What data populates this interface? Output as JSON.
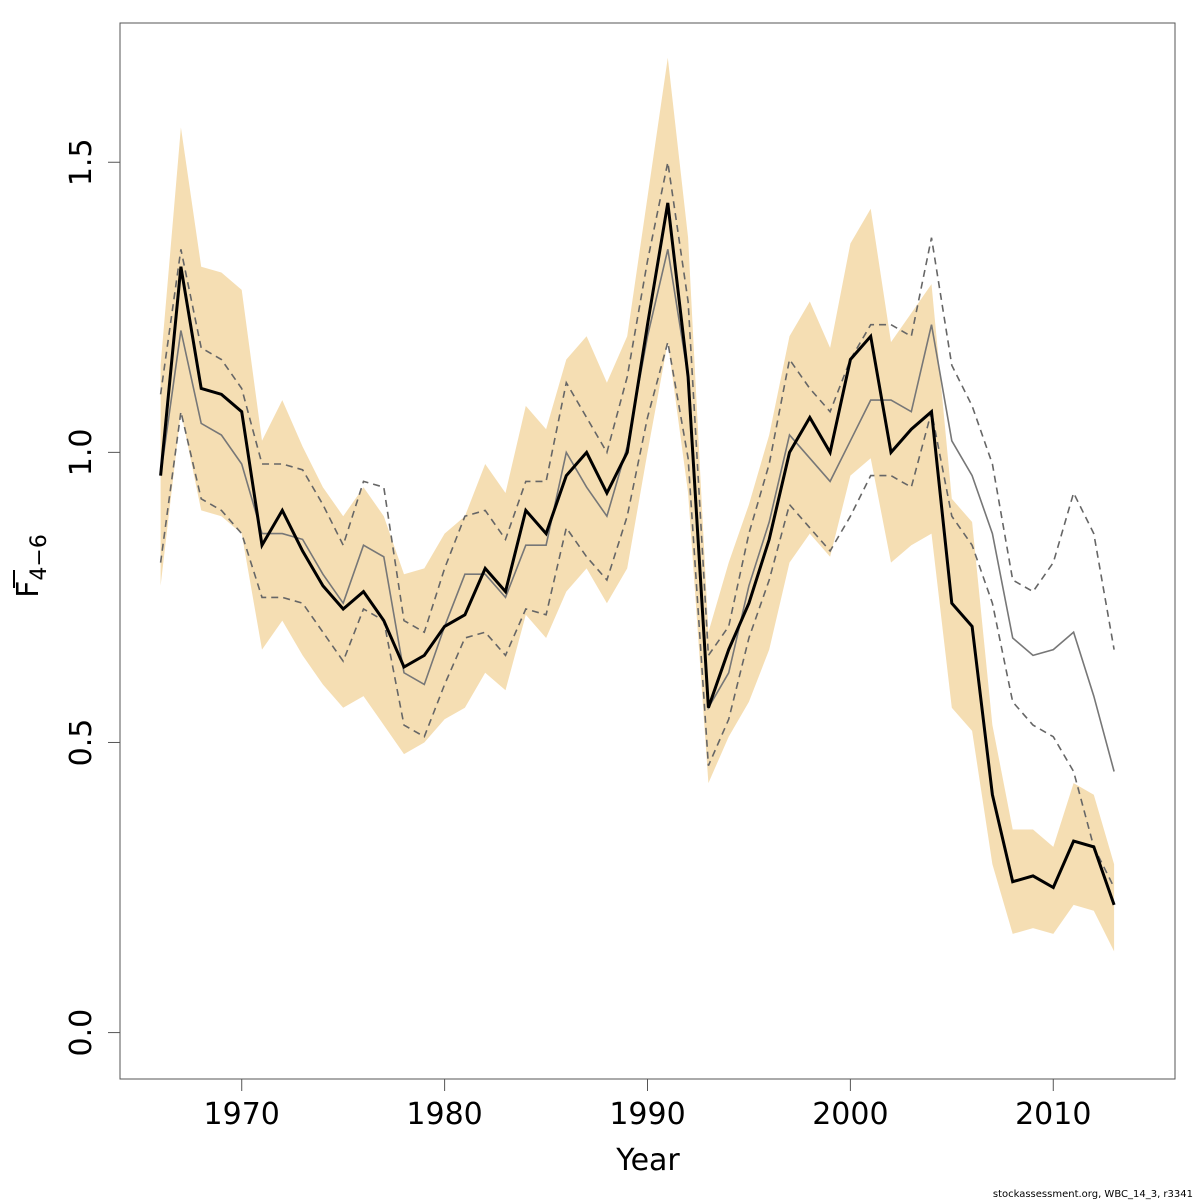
{
  "chart_data": {
    "type": "line",
    "xlabel": "Year",
    "ylabel": {
      "base": "F",
      "subscript": "4−6"
    },
    "xlim": [
      1964,
      2016
    ],
    "ylim": [
      -0.08,
      1.74
    ],
    "x_ticks": [
      1970,
      1980,
      1990,
      2000,
      2010
    ],
    "x_tick_labels": [
      "1970",
      "1980",
      "1990",
      "2000",
      "2010"
    ],
    "y_ticks": [
      0.0,
      0.5,
      1.0,
      1.5
    ],
    "y_tick_labels": [
      "0.0",
      "0.5",
      "1.0",
      "1.5"
    ],
    "grid": false,
    "band_color": "#f5deb3",
    "x": [
      1966,
      1967,
      1968,
      1969,
      1970,
      1971,
      1972,
      1973,
      1974,
      1975,
      1976,
      1977,
      1978,
      1979,
      1980,
      1981,
      1982,
      1983,
      1984,
      1985,
      1986,
      1987,
      1988,
      1989,
      1990,
      1991,
      1992,
      1993,
      1994,
      1995,
      1996,
      1997,
      1998,
      1999,
      2000,
      2001,
      2002,
      2003,
      2004,
      2005,
      2006,
      2007,
      2008,
      2009,
      2010,
      2011,
      2012,
      2013
    ],
    "series": [
      {
        "role": "estimate",
        "color": "#000000",
        "style": "solid-thick",
        "values": [
          0.96,
          1.32,
          1.11,
          1.1,
          1.07,
          0.84,
          0.9,
          0.83,
          0.77,
          0.73,
          0.76,
          0.71,
          0.63,
          0.65,
          0.7,
          0.72,
          0.8,
          0.76,
          0.9,
          0.86,
          0.96,
          1.0,
          0.93,
          1.0,
          1.22,
          1.43,
          1.13,
          0.56,
          0.66,
          0.74,
          0.85,
          1.0,
          1.06,
          1.0,
          1.16,
          1.2,
          1.0,
          1.04,
          1.07,
          0.74,
          0.7,
          0.41,
          0.26,
          0.27,
          0.25,
          0.33,
          0.32,
          0.22
        ]
      },
      {
        "role": "upper-confidence",
        "type": "band-upper",
        "values": [
          1.15,
          1.56,
          1.32,
          1.31,
          1.28,
          1.02,
          1.09,
          1.01,
          0.94,
          0.89,
          0.94,
          0.89,
          0.79,
          0.8,
          0.86,
          0.89,
          0.98,
          0.93,
          1.08,
          1.04,
          1.16,
          1.2,
          1.12,
          1.2,
          1.44,
          1.68,
          1.37,
          0.69,
          0.81,
          0.91,
          1.03,
          1.2,
          1.26,
          1.18,
          1.36,
          1.42,
          1.19,
          1.24,
          1.29,
          0.92,
          0.88,
          0.53,
          0.35,
          0.35,
          0.32,
          0.43,
          0.41,
          0.29
        ]
      },
      {
        "role": "lower-confidence",
        "type": "band-lower",
        "values": [
          0.77,
          1.07,
          0.9,
          0.89,
          0.86,
          0.66,
          0.71,
          0.65,
          0.6,
          0.56,
          0.58,
          0.53,
          0.48,
          0.5,
          0.54,
          0.56,
          0.62,
          0.59,
          0.72,
          0.68,
          0.76,
          0.8,
          0.74,
          0.8,
          1.0,
          1.19,
          0.93,
          0.43,
          0.51,
          0.57,
          0.66,
          0.81,
          0.86,
          0.82,
          0.96,
          0.99,
          0.81,
          0.84,
          0.86,
          0.56,
          0.52,
          0.29,
          0.17,
          0.18,
          0.17,
          0.22,
          0.21,
          0.14
        ]
      },
      {
        "role": "comparison",
        "color": "#777777",
        "style": "solid-thin",
        "values": [
          0.96,
          1.21,
          1.05,
          1.03,
          0.98,
          0.86,
          0.86,
          0.85,
          0.79,
          0.74,
          0.84,
          0.82,
          0.62,
          0.6,
          0.7,
          0.79,
          0.79,
          0.75,
          0.84,
          0.84,
          1.0,
          0.94,
          0.89,
          1.01,
          1.2,
          1.35,
          1.13,
          0.56,
          0.62,
          0.77,
          0.88,
          1.03,
          0.99,
          0.95,
          1.02,
          1.09,
          1.09,
          1.07,
          1.22,
          1.02,
          0.96,
          0.86,
          0.68,
          0.65,
          0.66,
          0.69,
          0.58,
          0.45
        ]
      },
      {
        "role": "comparison-upper",
        "color": "#666666",
        "style": "dashed",
        "values": [
          1.1,
          1.35,
          1.18,
          1.16,
          1.11,
          0.98,
          0.98,
          0.97,
          0.91,
          0.84,
          0.95,
          0.94,
          0.71,
          0.69,
          0.8,
          0.89,
          0.9,
          0.85,
          0.95,
          0.95,
          1.12,
          1.06,
          1.0,
          1.13,
          1.33,
          1.5,
          1.26,
          0.65,
          0.7,
          0.86,
          0.98,
          1.16,
          1.11,
          1.07,
          1.16,
          1.22,
          1.22,
          1.2,
          1.37,
          1.15,
          1.08,
          0.98,
          0.78,
          0.76,
          0.81,
          0.93,
          0.86,
          0.66
        ]
      },
      {
        "role": "comparison-lower",
        "color": "#666666",
        "style": "dashed",
        "values": [
          0.81,
          1.07,
          0.92,
          0.9,
          0.86,
          0.75,
          0.75,
          0.74,
          0.69,
          0.64,
          0.73,
          0.71,
          0.53,
          0.51,
          0.6,
          0.68,
          0.69,
          0.65,
          0.73,
          0.72,
          0.87,
          0.82,
          0.78,
          0.89,
          1.06,
          1.19,
          0.99,
          0.46,
          0.54,
          0.68,
          0.78,
          0.91,
          0.87,
          0.83,
          0.89,
          0.96,
          0.96,
          0.94,
          1.07,
          0.89,
          0.84,
          0.74,
          0.57,
          0.53,
          0.51,
          0.45,
          0.32,
          0.25
        ]
      }
    ]
  },
  "footer": "stockassessment.org, WBC_14_3, r3341"
}
